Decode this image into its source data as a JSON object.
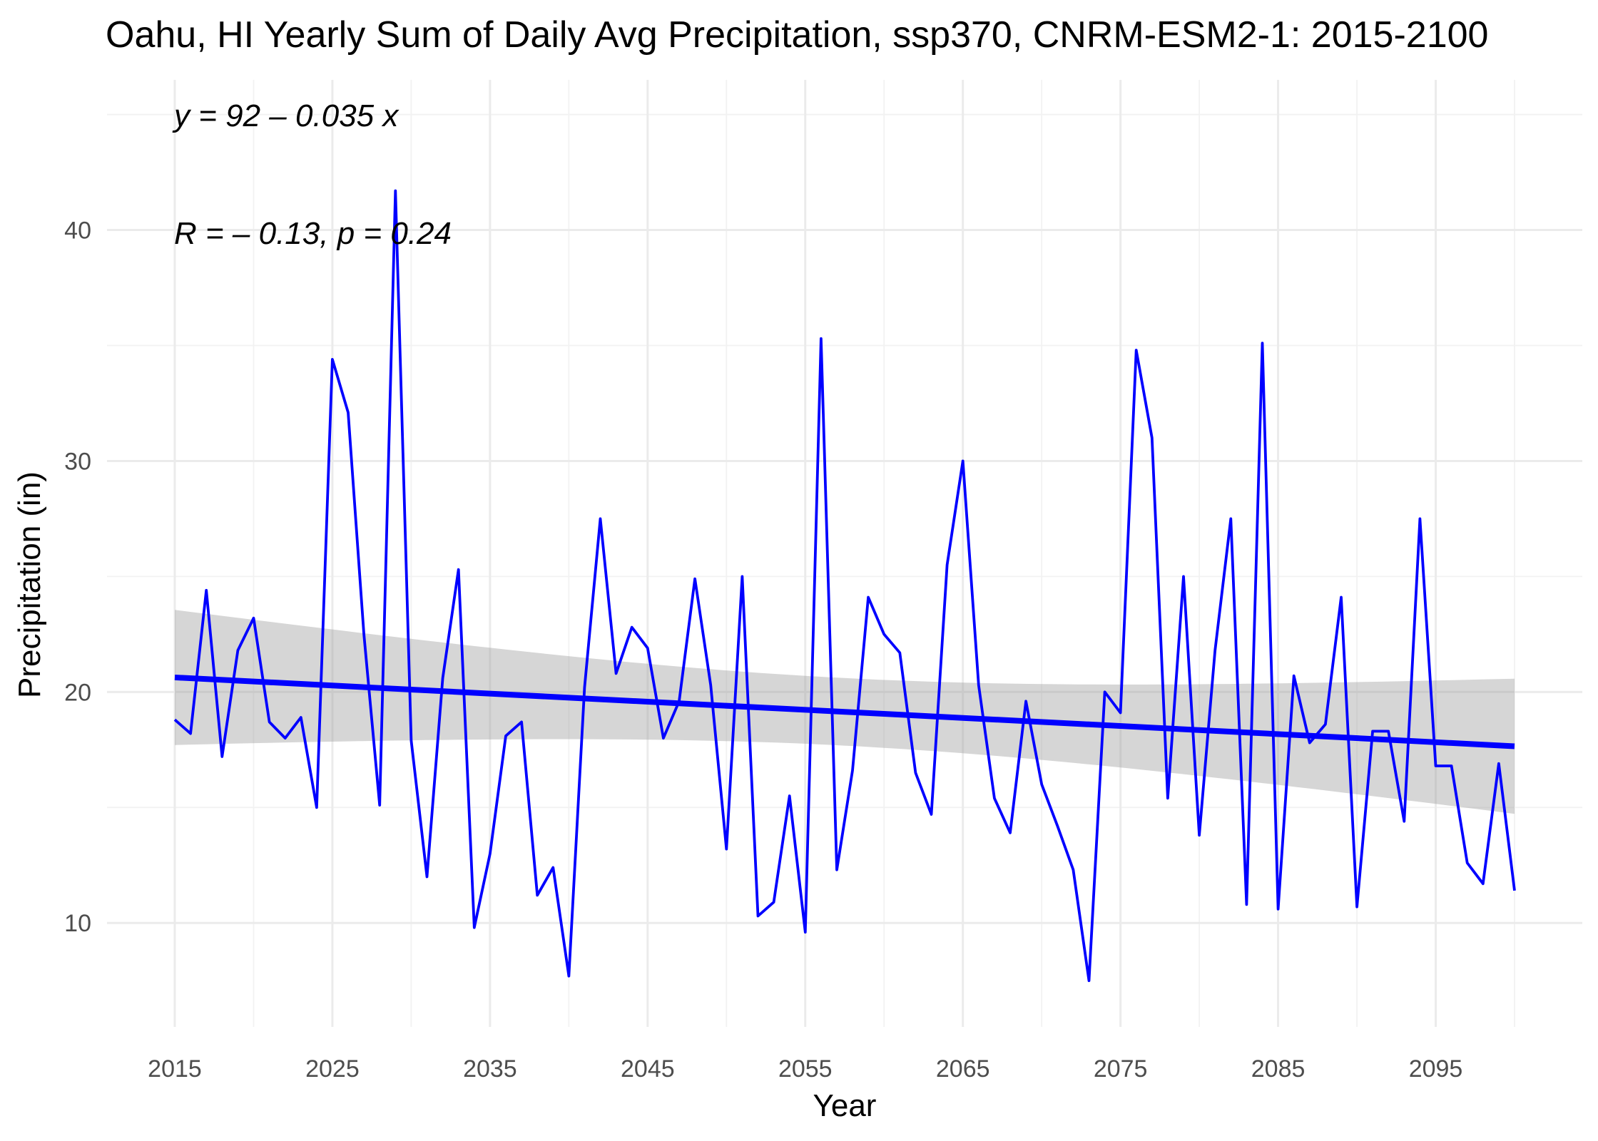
{
  "chart_data": {
    "type": "line",
    "title": "Oahu, HI Yearly Sum of Daily Avg Precipitation, ssp370, CNRM-ESM2-1: 2015-2100",
    "xlabel": "Year",
    "ylabel": "Precipitation (in)",
    "xlim": [
      2010.7,
      2104.3
    ],
    "ylim": [
      5.5,
      46.5
    ],
    "x_ticks": [
      2015,
      2025,
      2035,
      2045,
      2055,
      2065,
      2075,
      2085,
      2095
    ],
    "y_ticks": [
      10,
      20,
      30,
      40
    ],
    "x_minor_ticks": [
      2020,
      2030,
      2040,
      2050,
      2060,
      2070,
      2080,
      2090,
      2100
    ],
    "y_minor_ticks": [
      15,
      25,
      35,
      45
    ],
    "grid": true,
    "legend": "none",
    "line_color": "#0000ff",
    "regression_color": "#0000ff",
    "ribbon_color": "#999999",
    "annotation_eq": "y = 92 – 0.035 x",
    "annotation_stats": "R = – 0.13, p = 0.24",
    "series": [
      {
        "x": [
          2015,
          2016,
          2017,
          2018,
          2019,
          2020,
          2021,
          2022,
          2023,
          2024,
          2025,
          2026,
          2027,
          2028,
          2029,
          2030,
          2031,
          2032,
          2033,
          2034,
          2035,
          2036,
          2037,
          2038,
          2039,
          2040,
          2041,
          2042,
          2043,
          2044,
          2045,
          2046,
          2047,
          2048,
          2049,
          2050,
          2051,
          2052,
          2053,
          2054,
          2055,
          2056,
          2057,
          2058,
          2059,
          2060,
          2061,
          2062,
          2063,
          2064,
          2065,
          2066,
          2067,
          2068,
          2069,
          2070,
          2071,
          2072,
          2073,
          2074,
          2075,
          2076,
          2077,
          2078,
          2079,
          2080,
          2081,
          2082,
          2083,
          2084,
          2085,
          2086,
          2087,
          2088,
          2089,
          2090,
          2091,
          2092,
          2093,
          2094,
          2095,
          2096,
          2097,
          2098,
          2099,
          2100
        ],
        "values": [
          18.8,
          18.2,
          24.4,
          17.2,
          21.8,
          23.2,
          18.7,
          18.0,
          18.9,
          15.0,
          34.4,
          32.1,
          22.5,
          15.1,
          41.7,
          17.9,
          12.0,
          20.6,
          25.3,
          9.8,
          13.0,
          18.1,
          18.7,
          11.2,
          12.4,
          7.7,
          20.2,
          27.5,
          20.8,
          22.8,
          21.9,
          18.0,
          19.6,
          24.9,
          20.3,
          13.2,
          25.0,
          10.3,
          10.9,
          15.5,
          9.6,
          35.3,
          12.3,
          16.6,
          24.1,
          22.5,
          21.7,
          16.5,
          14.7,
          25.5,
          30.0,
          20.3,
          15.4,
          13.9,
          19.6,
          16.0,
          14.2,
          12.3,
          7.5,
          20.0,
          19.1,
          34.8,
          31.0,
          15.4,
          25.0,
          13.8,
          21.8,
          27.5,
          10.8,
          35.1,
          10.6,
          20.7,
          17.8,
          18.6,
          24.1,
          10.7,
          18.3,
          18.3,
          14.4,
          27.5,
          16.8,
          16.8,
          12.6,
          11.7,
          16.9,
          11.4
        ]
      }
    ],
    "regression": {
      "x": [
        2015,
        2100
      ],
      "values": [
        20.63,
        17.65
      ],
      "ci_lower": [
        17.7,
        14.75
      ],
      "ci_upper": [
        23.6,
        20.55
      ]
    }
  }
}
